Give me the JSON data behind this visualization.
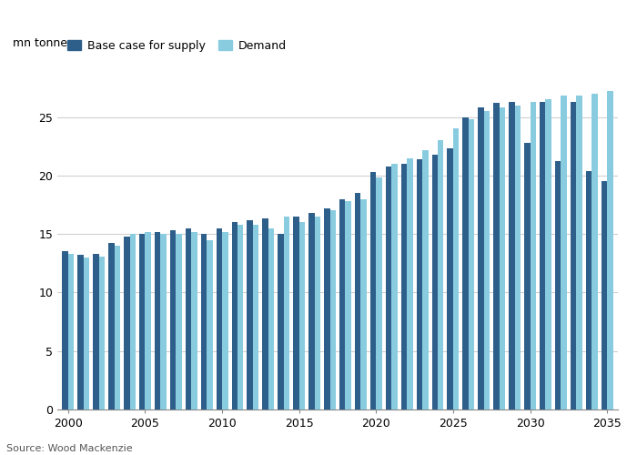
{
  "years": [
    2000,
    2001,
    2002,
    2003,
    2004,
    2005,
    2006,
    2007,
    2008,
    2009,
    2010,
    2011,
    2012,
    2013,
    2014,
    2015,
    2016,
    2017,
    2018,
    2019,
    2020,
    2021,
    2022,
    2023,
    2024,
    2025,
    2026,
    2027,
    2028,
    2029,
    2030,
    2031,
    2032,
    2033,
    2034,
    2035
  ],
  "supply": [
    13.5,
    13.2,
    13.3,
    14.2,
    14.8,
    15.0,
    15.2,
    15.3,
    15.5,
    15.0,
    15.5,
    16.0,
    16.2,
    16.3,
    15.0,
    16.5,
    16.8,
    17.2,
    18.0,
    18.5,
    20.3,
    20.8,
    21.0,
    21.4,
    21.8,
    22.3,
    25.0,
    25.8,
    26.2,
    26.3,
    22.8,
    26.3,
    21.2,
    26.3,
    20.4,
    19.5
  ],
  "demand": [
    13.3,
    13.0,
    13.1,
    14.0,
    15.0,
    15.2,
    15.0,
    15.0,
    15.2,
    14.5,
    15.2,
    15.8,
    15.8,
    15.5,
    16.5,
    16.0,
    16.5,
    17.0,
    17.8,
    18.0,
    19.8,
    21.0,
    21.5,
    22.2,
    23.0,
    24.0,
    24.8,
    25.5,
    25.8,
    26.0,
    26.3,
    26.5,
    26.8,
    26.8,
    27.0,
    27.2
  ],
  "supply_color": "#2e5f8a",
  "demand_color": "#89cce0",
  "ylabel": "mn tonnes",
  "ylim": [
    0,
    28
  ],
  "yticks": [
    0,
    5,
    10,
    15,
    20,
    25
  ],
  "legend_supply": "Base case for supply",
  "legend_demand": "Demand",
  "source": "Source: Wood Mackenzie",
  "background_color": "#ffffff",
  "grid_color": "#d0d0d0",
  "bar_width": 0.38,
  "label_fontsize": 9,
  "tick_fontsize": 9
}
